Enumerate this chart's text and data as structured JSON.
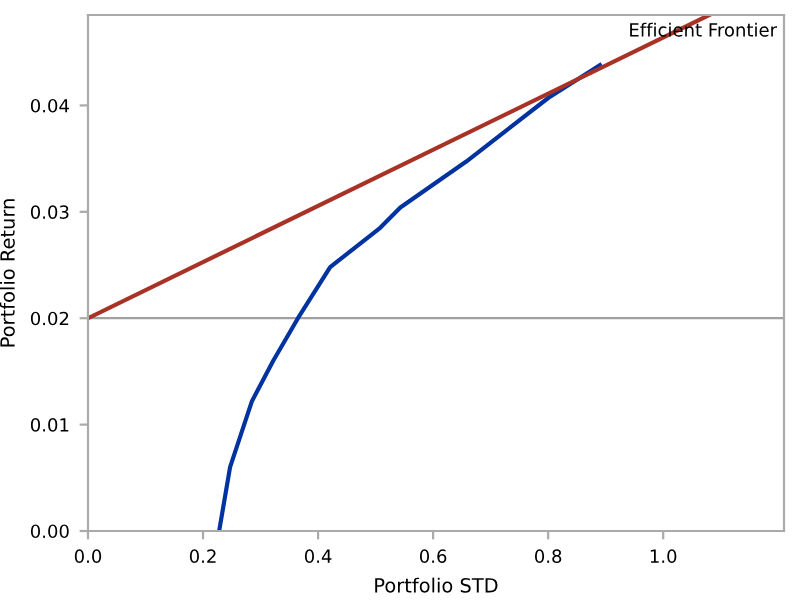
{
  "chart_data": {
    "type": "line",
    "xlabel": "Portfolio STD",
    "ylabel": "Portfolio Return",
    "annotations": [
      "Efficient Frontier"
    ],
    "series": [
      {
        "color": "#0033a0",
        "x": [
          0.228,
          0.247,
          0.285,
          0.322,
          0.365,
          0.421,
          0.508,
          0.543,
          0.657,
          0.8,
          0.89
        ],
        "values": [
          0.0,
          0.006,
          0.0122,
          0.016,
          0.02,
          0.0248,
          0.0285,
          0.0304,
          0.0347,
          0.0407,
          0.0438
        ]
      },
      {
        "color": "#a93226",
        "x": [
          0.0,
          1.08
        ],
        "values": [
          0.02,
          0.0485
        ]
      }
    ],
    "ref_lines": [
      {
        "axis": "y",
        "value": 0.02,
        "color": "#a0a0a0"
      }
    ],
    "xlim": [
      0,
      1.21
    ],
    "ylim": [
      0,
      0.0485
    ],
    "xticks": [
      {
        "value": 0,
        "label": "0.0"
      },
      {
        "value": 0.2,
        "label": "0.2"
      },
      {
        "value": 0.4,
        "label": "0.4"
      },
      {
        "value": 0.6,
        "label": "0.6"
      },
      {
        "value": 0.8,
        "label": "0.8"
      },
      {
        "value": 1.0,
        "label": "1.0"
      }
    ],
    "yticks": [
      {
        "value": 0,
        "label": "0.00"
      },
      {
        "value": 0.01,
        "label": "0.01"
      },
      {
        "value": 0.02,
        "label": "0.02"
      },
      {
        "value": 0.03,
        "label": "0.03"
      },
      {
        "value": 0.04,
        "label": "0.04"
      }
    ]
  }
}
